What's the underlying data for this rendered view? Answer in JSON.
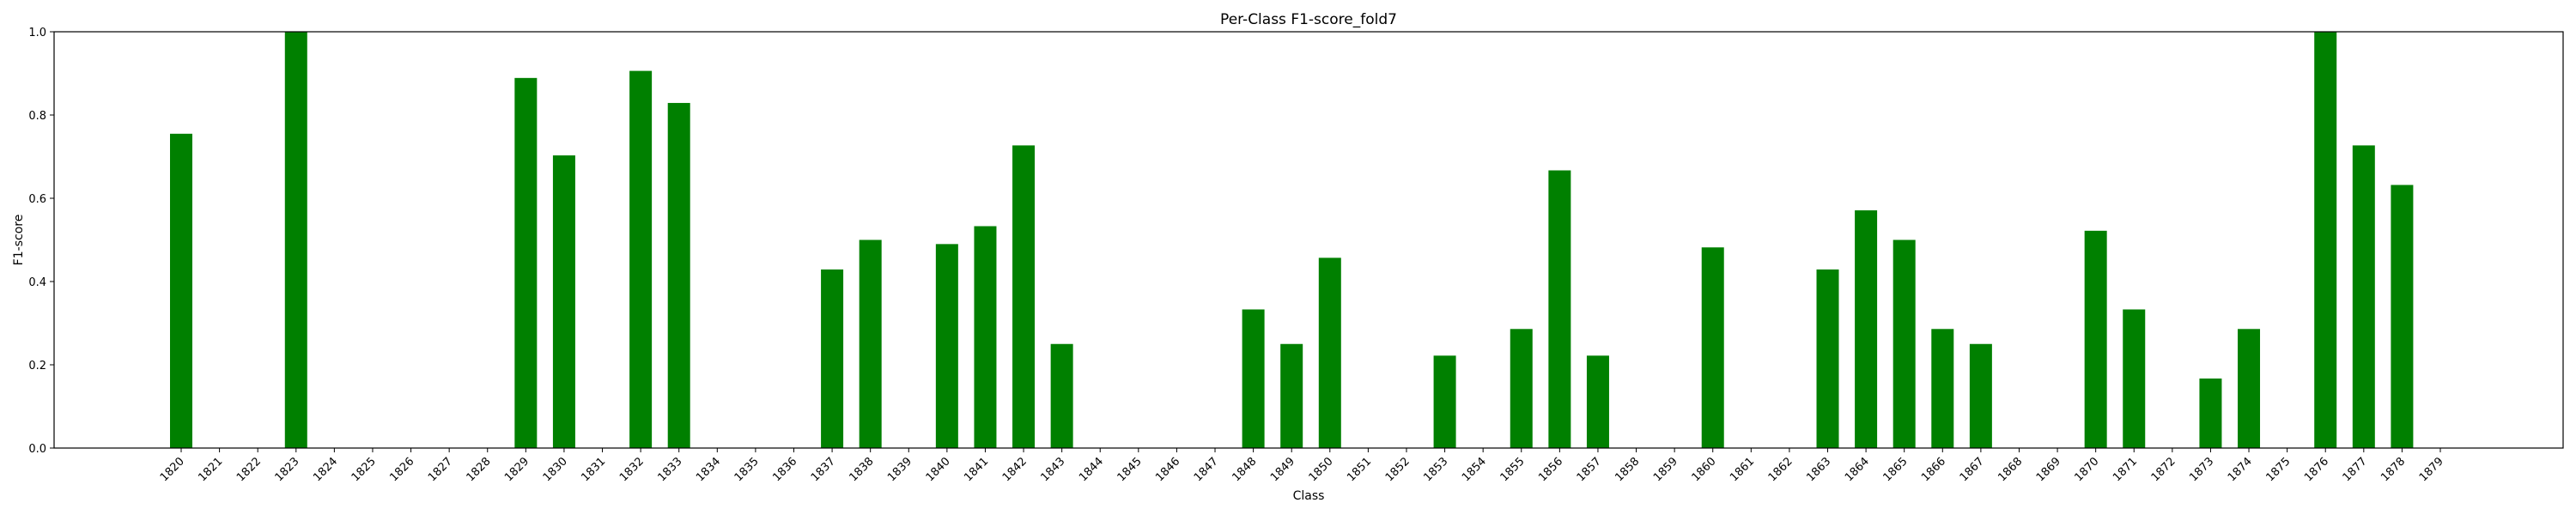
{
  "chart_data": {
    "type": "bar",
    "title": "Per-Class F1-score_fold7",
    "xlabel": "Class",
    "ylabel": "F1-score",
    "ylim": [
      0,
      1.0
    ],
    "yticks": [
      "0.0",
      "0.2",
      "0.4",
      "0.6",
      "0.8",
      "1.0"
    ],
    "grid": false,
    "bar_color": "#008000",
    "categories": [
      "1820",
      "1821",
      "1822",
      "1823",
      "1824",
      "1825",
      "1826",
      "1827",
      "1828",
      "1829",
      "1830",
      "1831",
      "1832",
      "1833",
      "1834",
      "1835",
      "1836",
      "1837",
      "1838",
      "1839",
      "1840",
      "1841",
      "1842",
      "1843",
      "1844",
      "1845",
      "1846",
      "1847",
      "1848",
      "1849",
      "1850",
      "1851",
      "1852",
      "1853",
      "1854",
      "1855",
      "1856",
      "1857",
      "1858",
      "1859",
      "1860",
      "1861",
      "1862",
      "1863",
      "1864",
      "1865",
      "1866",
      "1867",
      "1868",
      "1869",
      "1870",
      "1871",
      "1872",
      "1873",
      "1874",
      "1875",
      "1876",
      "1877",
      "1878",
      "1879"
    ],
    "values": [
      0.755,
      0,
      0,
      1.0,
      0,
      0,
      0,
      0,
      0,
      0.889,
      0.703,
      0,
      0.906,
      0.829,
      0,
      0,
      0,
      0.429,
      0.5,
      0,
      0.49,
      0.533,
      0.727,
      0.25,
      0,
      0,
      0,
      0,
      0.333,
      0.25,
      0.457,
      0,
      0,
      0.222,
      0,
      0.286,
      0.667,
      0.222,
      0,
      0,
      0.482,
      0,
      0,
      0.429,
      0.571,
      0.5,
      0.286,
      0.25,
      0,
      0,
      0.522,
      0.333,
      0,
      0.167,
      0.286,
      0,
      1.0,
      0.727,
      0.632,
      0
    ]
  }
}
